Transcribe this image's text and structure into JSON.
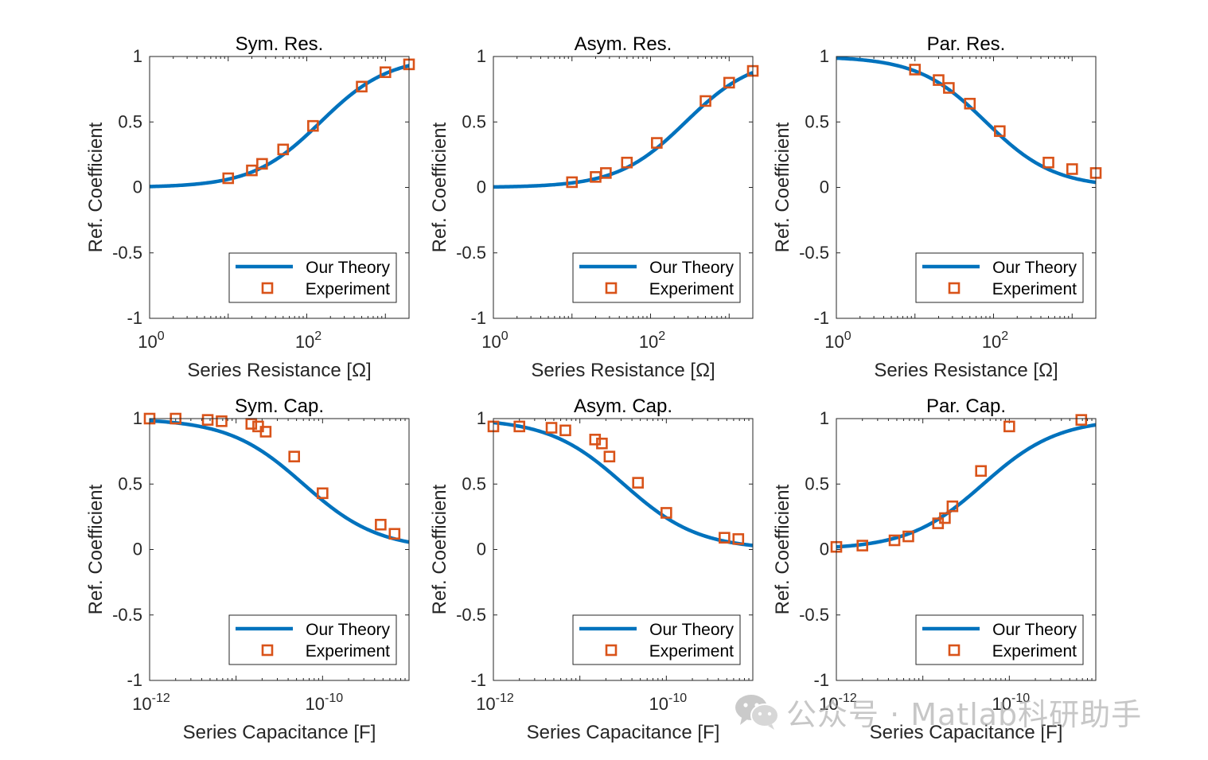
{
  "colors": {
    "theory": "#0072BD",
    "experiment": "#D95319",
    "axis": "#262626"
  },
  "legend": {
    "theory": "Our Theory",
    "experiment": "Experiment"
  },
  "watermark": {
    "text": "公众号 · Matlab科研助手"
  },
  "chart_data": [
    {
      "type": "line",
      "title": "Sym. Res.",
      "xlabel": "Series Resistance [Ω]",
      "ylabel": "Ref. Coefficient",
      "xscale": "log",
      "xlim": [
        1,
        2000
      ],
      "ylim": [
        -1,
        1
      ],
      "xticks": [
        {
          "value": 1,
          "base": "10",
          "exp": "0"
        },
        {
          "value": 100,
          "base": "10",
          "exp": "2"
        }
      ],
      "yticks": [
        "1",
        "0.5",
        "0",
        "-0.5",
        "-1"
      ],
      "legend_position": "bottom-right",
      "series": [
        {
          "name": "Our Theory",
          "model": "r_over_r_plus_z0",
          "z0": 150
        },
        {
          "name": "Experiment",
          "x": [
            10,
            20,
            27,
            50,
            120,
            500,
            1000,
            2000
          ],
          "y": [
            0.07,
            0.13,
            0.18,
            0.29,
            0.47,
            0.77,
            0.88,
            0.94
          ]
        }
      ]
    },
    {
      "type": "line",
      "title": "Asym. Res.",
      "xlabel": "Series Resistance [Ω]",
      "ylabel": "Ref. Coefficient",
      "xscale": "log",
      "xlim": [
        1,
        2000
      ],
      "ylim": [
        -1,
        1
      ],
      "xticks": [
        {
          "value": 1,
          "base": "10",
          "exp": "0"
        },
        {
          "value": 100,
          "base": "10",
          "exp": "2"
        }
      ],
      "yticks": [
        "1",
        "0.5",
        "0",
        "-0.5",
        "-1"
      ],
      "legend_position": "bottom-right",
      "series": [
        {
          "name": "Our Theory",
          "model": "r_over_r_plus_z0",
          "z0": 280
        },
        {
          "name": "Experiment",
          "x": [
            10,
            20,
            27,
            50,
            120,
            500,
            1000,
            2000
          ],
          "y": [
            0.04,
            0.08,
            0.11,
            0.19,
            0.34,
            0.66,
            0.8,
            0.89
          ]
        }
      ]
    },
    {
      "type": "line",
      "title": "Par. Res.",
      "xlabel": "Series Resistance [Ω]",
      "ylabel": "Ref. Coefficient",
      "xscale": "log",
      "xlim": [
        1,
        2000
      ],
      "ylim": [
        -1,
        1
      ],
      "xticks": [
        {
          "value": 1,
          "base": "10",
          "exp": "0"
        },
        {
          "value": 100,
          "base": "10",
          "exp": "2"
        }
      ],
      "yticks": [
        "1",
        "0.5",
        "0",
        "-0.5",
        "-1"
      ],
      "legend_position": "bottom-right",
      "series": [
        {
          "name": "Our Theory",
          "model": "z0_over_r_plus_z0",
          "z0": 80
        },
        {
          "name": "Experiment",
          "x": [
            10,
            20,
            27,
            50,
            120,
            500,
            1000,
            2000
          ],
          "y": [
            0.9,
            0.82,
            0.76,
            0.64,
            0.43,
            0.19,
            0.14,
            0.11
          ]
        }
      ]
    },
    {
      "type": "line",
      "title": "Sym. Cap.",
      "xlabel": "Series Capacitance [F]",
      "ylabel": "Ref. Coefficient",
      "xscale": "log",
      "xlim": [
        1e-12,
        1e-09
      ],
      "ylim": [
        -1,
        1
      ],
      "xticks": [
        {
          "value": 1e-12,
          "base": "10",
          "exp": "-12"
        },
        {
          "value": 1e-10,
          "base": "10",
          "exp": "-10"
        }
      ],
      "yticks": [
        "1",
        "0.5",
        "0",
        "-0.5",
        "-1"
      ],
      "legend_position": "bottom-right",
      "series": [
        {
          "name": "Our Theory",
          "model": "c0_over_c_plus_c0",
          "c0": 6e-11
        },
        {
          "name": "Experiment",
          "x": [
            1e-12,
            2e-12,
            4.7e-12,
            6.8e-12,
            1.5e-11,
            1.8e-11,
            2.2e-11,
            4.7e-11,
            1e-10,
            4.7e-10,
            6.8e-10
          ],
          "y": [
            1.0,
            1.0,
            0.99,
            0.98,
            0.96,
            0.94,
            0.9,
            0.71,
            0.43,
            0.19,
            0.12
          ]
        }
      ]
    },
    {
      "type": "line",
      "title": "Asym. Cap.",
      "xlabel": "Series Capacitance [F]",
      "ylabel": "Ref. Coefficient",
      "xscale": "log",
      "xlim": [
        1e-12,
        1e-09
      ],
      "ylim": [
        -1,
        1
      ],
      "xticks": [
        {
          "value": 1e-12,
          "base": "10",
          "exp": "-12"
        },
        {
          "value": 1e-10,
          "base": "10",
          "exp": "-10"
        }
      ],
      "yticks": [
        "1",
        "0.5",
        "0",
        "-0.5",
        "-1"
      ],
      "legend_position": "bottom-right",
      "series": [
        {
          "name": "Our Theory",
          "model": "c0_over_c_plus_c0",
          "c0": 3.2e-11
        },
        {
          "name": "Experiment",
          "x": [
            1e-12,
            2e-12,
            4.7e-12,
            6.8e-12,
            1.5e-11,
            1.8e-11,
            2.2e-11,
            4.7e-11,
            1e-10,
            4.7e-10,
            6.8e-10
          ],
          "y": [
            0.94,
            0.94,
            0.93,
            0.91,
            0.84,
            0.81,
            0.71,
            0.51,
            0.28,
            0.09,
            0.08
          ]
        }
      ]
    },
    {
      "type": "line",
      "title": "Par. Cap.",
      "xlabel": "Series Capacitance [F]",
      "ylabel": "Ref. Coefficient",
      "xscale": "log",
      "xlim": [
        1e-12,
        1e-09
      ],
      "ylim": [
        -1,
        1
      ],
      "xticks": [
        {
          "value": 1e-12,
          "base": "10",
          "exp": "-12"
        },
        {
          "value": 1e-10,
          "base": "10",
          "exp": "-10"
        }
      ],
      "yticks": [
        "1",
        "0.5",
        "0",
        "-0.5",
        "-1"
      ],
      "legend_position": "bottom-right",
      "series": [
        {
          "name": "Our Theory",
          "model": "c_over_c_plus_c0",
          "c0": 5e-11
        },
        {
          "name": "Experiment",
          "x": [
            1e-12,
            2e-12,
            4.7e-12,
            6.8e-12,
            1.5e-11,
            1.8e-11,
            2.2e-11,
            4.7e-11,
            1e-10,
            6.8e-10
          ],
          "y": [
            0.02,
            0.03,
            0.07,
            0.1,
            0.2,
            0.24,
            0.33,
            0.6,
            0.94,
            0.99
          ]
        }
      ]
    }
  ]
}
